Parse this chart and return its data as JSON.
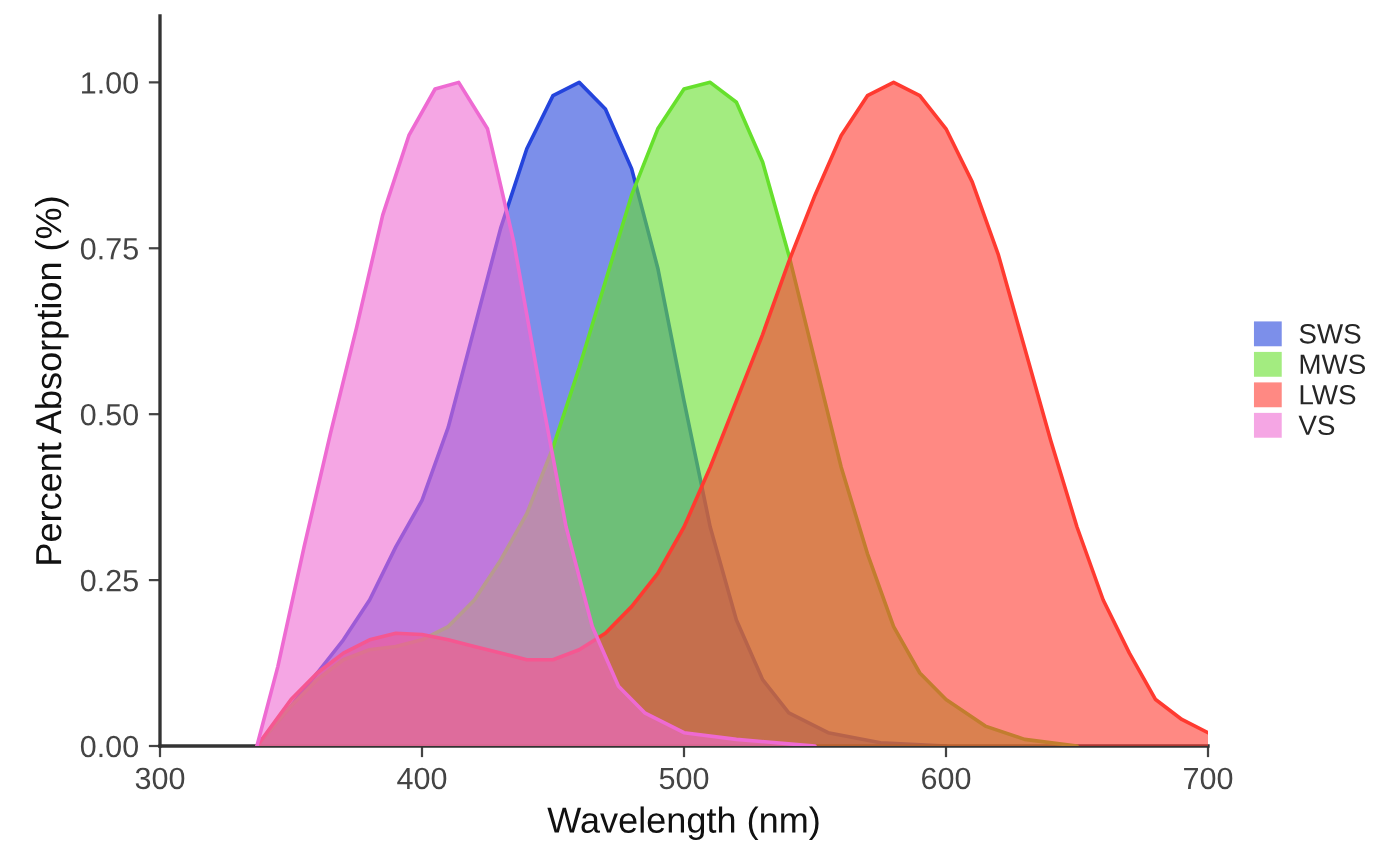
{
  "chart_data": {
    "type": "area",
    "xlabel": "Wavelength (nm)",
    "ylabel": "Percent Absorption (%)",
    "xlim": [
      300,
      700
    ],
    "ylim": [
      0,
      1.1
    ],
    "xticks": [
      300,
      400,
      500,
      600,
      700
    ],
    "yticks": [
      {
        "value": 0,
        "label": "0.00"
      },
      {
        "value": 0.25,
        "label": "0.25"
      },
      {
        "value": 0.5,
        "label": "0.50"
      },
      {
        "value": 0.75,
        "label": "0.75"
      },
      {
        "value": 1,
        "label": "1.00"
      }
    ],
    "grid": false,
    "legend": "right",
    "series": [
      {
        "name": "SWS",
        "color": "#2444dc",
        "x": [
          337,
          350,
          360,
          370,
          380,
          390,
          400,
          410,
          420,
          430,
          440,
          450,
          460,
          470,
          480,
          490,
          500,
          510,
          520,
          530,
          540,
          555,
          575,
          600
        ],
        "values": [
          0,
          0.06,
          0.11,
          0.16,
          0.22,
          0.3,
          0.37,
          0.48,
          0.63,
          0.78,
          0.9,
          0.98,
          1.0,
          0.96,
          0.87,
          0.72,
          0.52,
          0.33,
          0.19,
          0.1,
          0.05,
          0.02,
          0.005,
          0
        ]
      },
      {
        "name": "MWS",
        "color": "#66e02c",
        "x": [
          337,
          350,
          360,
          370,
          380,
          390,
          400,
          410,
          420,
          430,
          440,
          450,
          460,
          470,
          480,
          490,
          500,
          510,
          520,
          530,
          540,
          550,
          560,
          570,
          580,
          590,
          600,
          615,
          630,
          650
        ],
        "values": [
          0,
          0.06,
          0.1,
          0.13,
          0.145,
          0.15,
          0.16,
          0.18,
          0.22,
          0.28,
          0.35,
          0.45,
          0.57,
          0.7,
          0.83,
          0.93,
          0.99,
          1.0,
          0.97,
          0.88,
          0.74,
          0.58,
          0.42,
          0.29,
          0.18,
          0.11,
          0.07,
          0.03,
          0.01,
          0
        ]
      },
      {
        "name": "LWS",
        "color": "#ff3a30",
        "x": [
          337,
          350,
          360,
          370,
          380,
          390,
          400,
          410,
          420,
          430,
          440,
          450,
          460,
          470,
          480,
          490,
          500,
          510,
          520,
          530,
          540,
          550,
          560,
          570,
          580,
          590,
          600,
          610,
          620,
          630,
          640,
          650,
          660,
          670,
          680,
          690,
          700
        ],
        "values": [
          0,
          0.07,
          0.11,
          0.14,
          0.16,
          0.17,
          0.168,
          0.16,
          0.15,
          0.14,
          0.13,
          0.13,
          0.145,
          0.17,
          0.21,
          0.26,
          0.33,
          0.42,
          0.52,
          0.62,
          0.73,
          0.83,
          0.92,
          0.98,
          1.0,
          0.98,
          0.93,
          0.85,
          0.74,
          0.6,
          0.46,
          0.33,
          0.22,
          0.14,
          0.07,
          0.04,
          0.02
        ]
      },
      {
        "name": "VS",
        "color": "#ee6ad2",
        "x": [
          337,
          345,
          355,
          365,
          375,
          385,
          395,
          405,
          414,
          425,
          435,
          445,
          455,
          465,
          475,
          485,
          500,
          520,
          550
        ],
        "values": [
          0,
          0.12,
          0.3,
          0.47,
          0.63,
          0.8,
          0.92,
          0.99,
          1.0,
          0.93,
          0.76,
          0.54,
          0.33,
          0.18,
          0.09,
          0.05,
          0.02,
          0.01,
          0
        ]
      }
    ]
  }
}
